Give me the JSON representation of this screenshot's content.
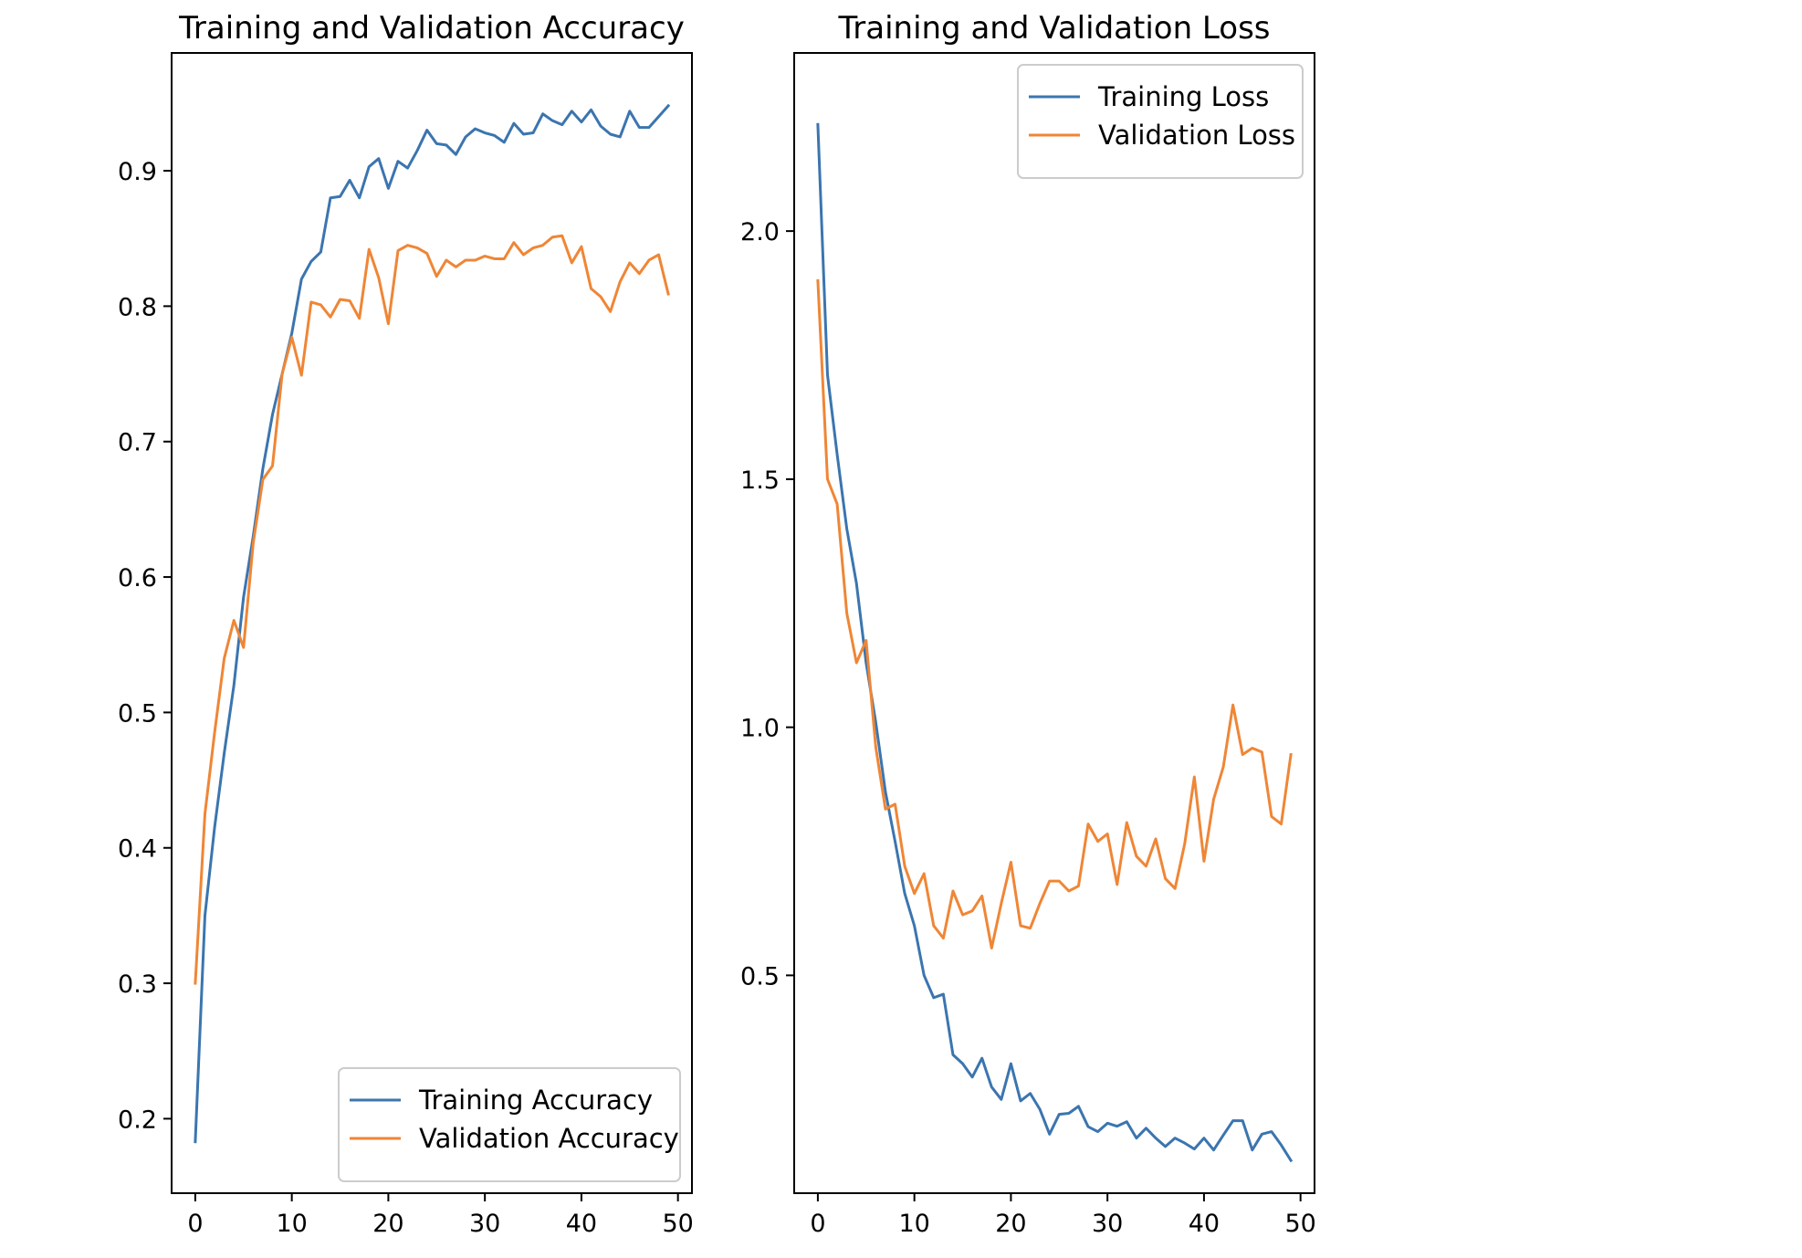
{
  "colors": {
    "training": "#3b75af",
    "validation": "#ef8636",
    "axes": "#000000",
    "legend_border": "#cccccc",
    "background": "#ffffff"
  },
  "chart_data": [
    {
      "type": "line",
      "title": "Training and Validation Accuracy",
      "xlabel": "",
      "ylabel": "",
      "xlim": [
        -2.45,
        51.45
      ],
      "ylim": [
        0.145,
        0.987
      ],
      "xticks": [
        0,
        10,
        20,
        30,
        40,
        50
      ],
      "yticks": [
        0.2,
        0.3,
        0.4,
        0.5,
        0.6,
        0.7,
        0.8,
        0.9
      ],
      "xtick_labels": [
        "0",
        "10",
        "20",
        "30",
        "40",
        "50"
      ],
      "ytick_labels": [
        "0.2",
        "0.3",
        "0.4",
        "0.5",
        "0.6",
        "0.7",
        "0.8",
        "0.9"
      ],
      "grid": false,
      "legend": "lower right",
      "x": [
        0,
        1,
        2,
        3,
        4,
        5,
        6,
        7,
        8,
        9,
        10,
        11,
        12,
        13,
        14,
        15,
        16,
        17,
        18,
        19,
        20,
        21,
        22,
        23,
        24,
        25,
        26,
        27,
        28,
        29,
        30,
        31,
        32,
        33,
        34,
        35,
        36,
        37,
        38,
        39,
        40,
        41,
        42,
        43,
        44,
        45,
        46,
        47,
        48,
        49
      ],
      "series": [
        {
          "name": "Training Accuracy",
          "values": [
            0.183,
            0.35,
            0.415,
            0.47,
            0.52,
            0.585,
            0.63,
            0.68,
            0.72,
            0.75,
            0.78,
            0.82,
            0.833,
            0.84,
            0.88,
            0.881,
            0.893,
            0.88,
            0.903,
            0.909,
            0.887,
            0.907,
            0.902,
            0.915,
            0.93,
            0.92,
            0.919,
            0.912,
            0.925,
            0.931,
            0.928,
            0.926,
            0.921,
            0.935,
            0.927,
            0.928,
            0.942,
            0.937,
            0.934,
            0.944,
            0.936,
            0.945,
            0.933,
            0.927,
            0.925,
            0.944,
            0.932,
            0.932,
            0.94,
            0.948
          ]
        },
        {
          "name": "Validation Accuracy",
          "values": [
            0.3,
            0.425,
            0.485,
            0.54,
            0.568,
            0.548,
            0.625,
            0.672,
            0.682,
            0.75,
            0.777,
            0.749,
            0.803,
            0.801,
            0.792,
            0.805,
            0.804,
            0.791,
            0.842,
            0.821,
            0.787,
            0.841,
            0.845,
            0.843,
            0.839,
            0.822,
            0.834,
            0.829,
            0.834,
            0.834,
            0.837,
            0.835,
            0.835,
            0.847,
            0.838,
            0.843,
            0.845,
            0.851,
            0.852,
            0.832,
            0.844,
            0.813,
            0.807,
            0.796,
            0.818,
            0.832,
            0.824,
            0.834,
            0.838,
            0.809
          ]
        }
      ]
    },
    {
      "type": "line",
      "title": "Training and Validation Loss",
      "xlabel": "",
      "ylabel": "",
      "xlim": [
        -2.45,
        51.45
      ],
      "ylim": [
        0.061,
        2.359
      ],
      "xticks": [
        0,
        10,
        20,
        30,
        40,
        50
      ],
      "yticks": [
        0.5,
        1.0,
        1.5,
        2.0
      ],
      "xtick_labels": [
        "0",
        "10",
        "20",
        "30",
        "40",
        "50"
      ],
      "ytick_labels": [
        "0.5",
        "1.0",
        "1.5",
        "2.0"
      ],
      "grid": false,
      "legend": "upper right",
      "x": [
        0,
        1,
        2,
        3,
        4,
        5,
        6,
        7,
        8,
        9,
        10,
        11,
        12,
        13,
        14,
        15,
        16,
        17,
        18,
        19,
        20,
        21,
        22,
        23,
        24,
        25,
        26,
        27,
        28,
        29,
        30,
        31,
        32,
        33,
        34,
        35,
        36,
        37,
        38,
        39,
        40,
        41,
        42,
        43,
        44,
        45,
        46,
        47,
        48,
        49
      ],
      "series": [
        {
          "name": "Training Loss",
          "values": [
            2.215,
            1.71,
            1.55,
            1.4,
            1.29,
            1.13,
            1.01,
            0.87,
            0.77,
            0.665,
            0.6,
            0.5,
            0.455,
            0.462,
            0.34,
            0.322,
            0.295,
            0.333,
            0.275,
            0.25,
            0.322,
            0.247,
            0.262,
            0.23,
            0.18,
            0.22,
            0.222,
            0.236,
            0.195,
            0.185,
            0.202,
            0.196,
            0.205,
            0.172,
            0.192,
            0.172,
            0.155,
            0.172,
            0.162,
            0.15,
            0.172,
            0.148,
            0.178,
            0.207,
            0.207,
            0.148,
            0.18,
            0.185,
            0.158,
            0.127
          ]
        },
        {
          "name": "Validation Loss",
          "values": [
            1.9,
            1.5,
            1.45,
            1.23,
            1.13,
            1.175,
            0.96,
            0.835,
            0.845,
            0.72,
            0.665,
            0.705,
            0.6,
            0.575,
            0.67,
            0.622,
            0.63,
            0.66,
            0.555,
            0.645,
            0.728,
            0.6,
            0.595,
            0.645,
            0.69,
            0.69,
            0.67,
            0.68,
            0.805,
            0.77,
            0.785,
            0.683,
            0.808,
            0.74,
            0.72,
            0.775,
            0.695,
            0.675,
            0.765,
            0.9,
            0.73,
            0.855,
            0.92,
            1.045,
            0.945,
            0.958,
            0.95,
            0.82,
            0.805,
            0.945
          ]
        }
      ]
    }
  ]
}
